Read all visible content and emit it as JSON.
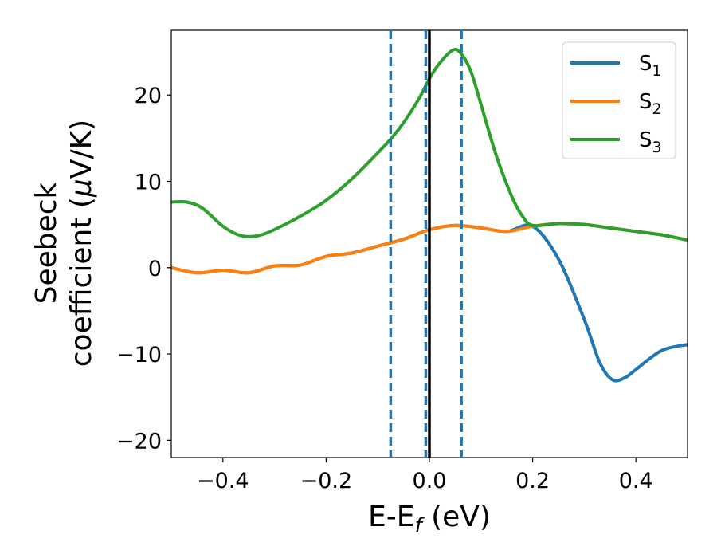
{
  "chart_data": {
    "type": "line",
    "title": "",
    "xlabel": {
      "main": "E-E",
      "sub": "f",
      "tail": " (eV)"
    },
    "ylabel": {
      "line1": "Seebeck",
      "line2_pre": "coefficient  (",
      "line2_mu": "μ",
      "line2_post": "V/K)"
    },
    "xlim": [
      -0.5,
      0.5
    ],
    "ylim": [
      -22,
      27.5
    ],
    "xticks": [
      -0.4,
      -0.2,
      0.0,
      0.2,
      0.4
    ],
    "xtick_labels": [
      "−0.4",
      "−0.2",
      "0.0",
      "0.2",
      "0.4"
    ],
    "yticks": [
      -20,
      -10,
      0,
      10,
      20
    ],
    "ytick_labels": [
      "−20",
      "−10",
      "0",
      "10",
      "20"
    ],
    "grid": false,
    "legend_position": "top-right",
    "vlines": {
      "dashed": {
        "color": "#1f77b4",
        "x": [
          -0.075,
          -0.007,
          0.062
        ]
      },
      "solid": {
        "color": "#000000",
        "x": [
          0.0
        ]
      }
    },
    "series": [
      {
        "name": "S",
        "sub": "1",
        "color": "#1f77b4",
        "x": [
          -0.5,
          -0.45,
          -0.4,
          -0.35,
          -0.3,
          -0.25,
          -0.2,
          -0.15,
          -0.1,
          -0.05,
          0.0,
          0.05,
          0.1,
          0.15,
          0.2,
          0.25,
          0.3,
          0.33,
          0.355,
          0.38,
          0.4,
          0.45,
          0.5
        ],
        "y": [
          0.0,
          -0.6,
          -0.3,
          -0.6,
          0.2,
          0.3,
          1.3,
          1.7,
          2.5,
          3.3,
          4.4,
          4.9,
          4.6,
          4.2,
          4.8,
          1.0,
          -6.0,
          -11.0,
          -13.0,
          -12.7,
          -11.8,
          -9.6,
          -8.9
        ]
      },
      {
        "name": "S",
        "sub": "2",
        "color": "#ff7f0e",
        "x": [
          -0.5,
          -0.45,
          -0.4,
          -0.35,
          -0.3,
          -0.25,
          -0.2,
          -0.15,
          -0.1,
          -0.05,
          0.0,
          0.05,
          0.1,
          0.15,
          0.2,
          0.25,
          0.3,
          0.35,
          0.4,
          0.45,
          0.5
        ],
        "y": [
          0.0,
          -0.6,
          -0.3,
          -0.6,
          0.2,
          0.3,
          1.3,
          1.7,
          2.5,
          3.3,
          4.4,
          4.9,
          4.6,
          4.2,
          4.8,
          5.1,
          5.0,
          4.6,
          4.2,
          3.8,
          3.2
        ]
      },
      {
        "name": "S",
        "sub": "3",
        "color": "#2ca02c",
        "x": [
          -0.5,
          -0.47,
          -0.44,
          -0.4,
          -0.37,
          -0.345,
          -0.32,
          -0.28,
          -0.24,
          -0.2,
          -0.15,
          -0.1,
          -0.075,
          -0.05,
          -0.02,
          0.0,
          0.02,
          0.045,
          0.06,
          0.08,
          0.1,
          0.13,
          0.16,
          0.18,
          0.2,
          0.25,
          0.3,
          0.35,
          0.4,
          0.45,
          0.5
        ],
        "y": [
          7.6,
          7.6,
          6.9,
          4.8,
          3.8,
          3.6,
          3.9,
          5.0,
          6.3,
          7.8,
          10.3,
          13.3,
          14.9,
          16.8,
          19.6,
          21.9,
          23.7,
          25.2,
          24.9,
          22.8,
          18.9,
          12.9,
          8.2,
          6.0,
          4.9,
          5.1,
          5.0,
          4.6,
          4.2,
          3.8,
          3.2
        ]
      }
    ]
  }
}
